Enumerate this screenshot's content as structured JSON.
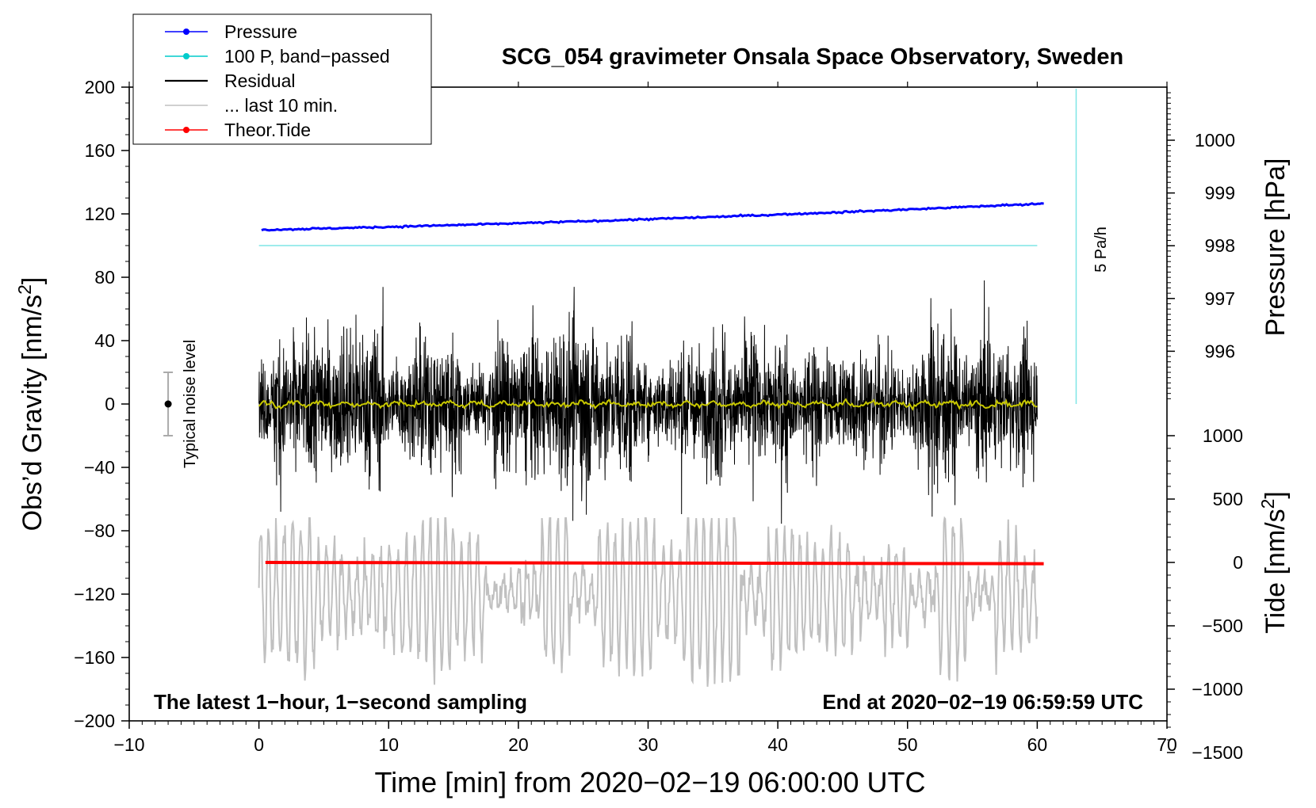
{
  "chart_data": {
    "type": "line",
    "title": "SCG_054 gravimeter Onsala Space Observatory, Sweden",
    "xlabel": "Time [min] from 2020−02−19 06:00:00 UTC",
    "ylabel_left": "Obs’d Gravity [nm/s",
    "ylabel_left_sup": "2",
    "ylabel_left_close": "]",
    "ylabel_pressure": "Pressure [hPa]",
    "ylabel_tide": "Tide [nm/s",
    "ylabel_tide_sup": "2",
    "ylabel_tide_close": "]",
    "xlim": [
      -10,
      70
    ],
    "ylim": [
      -200,
      200
    ],
    "x_ticks": [
      "−10",
      "0",
      "10",
      "20",
      "30",
      "40",
      "50",
      "60",
      "70"
    ],
    "x_tick_values": [
      -10,
      0,
      10,
      20,
      30,
      40,
      50,
      60,
      70
    ],
    "y_ticks": [
      "200",
      "160",
      "120",
      "80",
      "40",
      "0",
      "−40",
      "−80",
      "−120",
      "−160",
      "−200"
    ],
    "y_tick_values": [
      200,
      160,
      120,
      80,
      40,
      0,
      -40,
      -80,
      -120,
      -160,
      -200
    ],
    "pressure_ticks": [
      "1000",
      "999",
      "998",
      "997",
      "996"
    ],
    "pressure_tick_values": [
      1000,
      999,
      998,
      997,
      996
    ],
    "pressure_axis_map": {
      "hpa_at_grav_0": 995,
      "grav_per_hpa": 33.3
    },
    "tide_ticks": [
      "1000",
      "500",
      "0",
      "−500",
      "−1000",
      "−1500"
    ],
    "tide_tick_values": [
      1000,
      500,
      0,
      -500,
      -1000,
      -1500
    ],
    "tide_axis_map": {
      "nms2_at_grav_minus100": 0,
      "grav_per_nms2": 0.08
    },
    "legend": [
      {
        "label": "Pressure",
        "color": "#0000ff",
        "marker": true
      },
      {
        "label": "100 P, band−passed",
        "color": "#00cccc",
        "marker": true
      },
      {
        "label": "Residual",
        "color": "#000000",
        "marker": false
      },
      {
        "label": "... last 10 min.",
        "color": "#c0c0c0",
        "marker": false
      },
      {
        "label": "Theor.Tide",
        "color": "#ff0000",
        "marker": true
      }
    ],
    "series": [
      {
        "name": "Pressure",
        "color": "#0000ff",
        "unit": "hPa",
        "start_hpa": 998.3,
        "end_hpa": 998.8,
        "x_range": [
          0.2,
          60.5
        ]
      },
      {
        "name": "100 P, band-passed",
        "color": "#7fe5e5",
        "unit": "nm/s2",
        "level": 100,
        "x_range": [
          0,
          60
        ]
      },
      {
        "name": "Residual",
        "color": "#000000",
        "unit": "nm/s2",
        "center": 0,
        "amplitude_approx": 35,
        "peak_max": 78,
        "peak_min": -85,
        "x_range": [
          0,
          60
        ]
      },
      {
        "name": "Residual smoothed",
        "color": "#c8c800",
        "unit": "nm/s2",
        "level": 0,
        "x_range": [
          0,
          60
        ]
      },
      {
        "name": "... last 10 min.",
        "color": "#c0c0c0",
        "unit": "nm/s2",
        "center": -120,
        "peak_max": -72,
        "peak_min": -185,
        "x_range": [
          0,
          60
        ]
      },
      {
        "name": "Theor.Tide",
        "color": "#ff0000",
        "unit": "nm/s2",
        "start": 0,
        "end": -10,
        "x_range": [
          0.5,
          60.5
        ]
      }
    ],
    "pressure_gradient_marker": {
      "label": "5 Pa/h",
      "x": 63,
      "y_range": [
        0,
        200
      ],
      "color": "#7fe5e5"
    },
    "noise_marker": {
      "label": "Typical noise level",
      "x": -7,
      "center": 0,
      "low": -20,
      "high": 20
    },
    "annotation_left": "The latest 1−hour, 1−second sampling",
    "annotation_right": "End at 2020−02−19 06:59:59 UTC"
  }
}
